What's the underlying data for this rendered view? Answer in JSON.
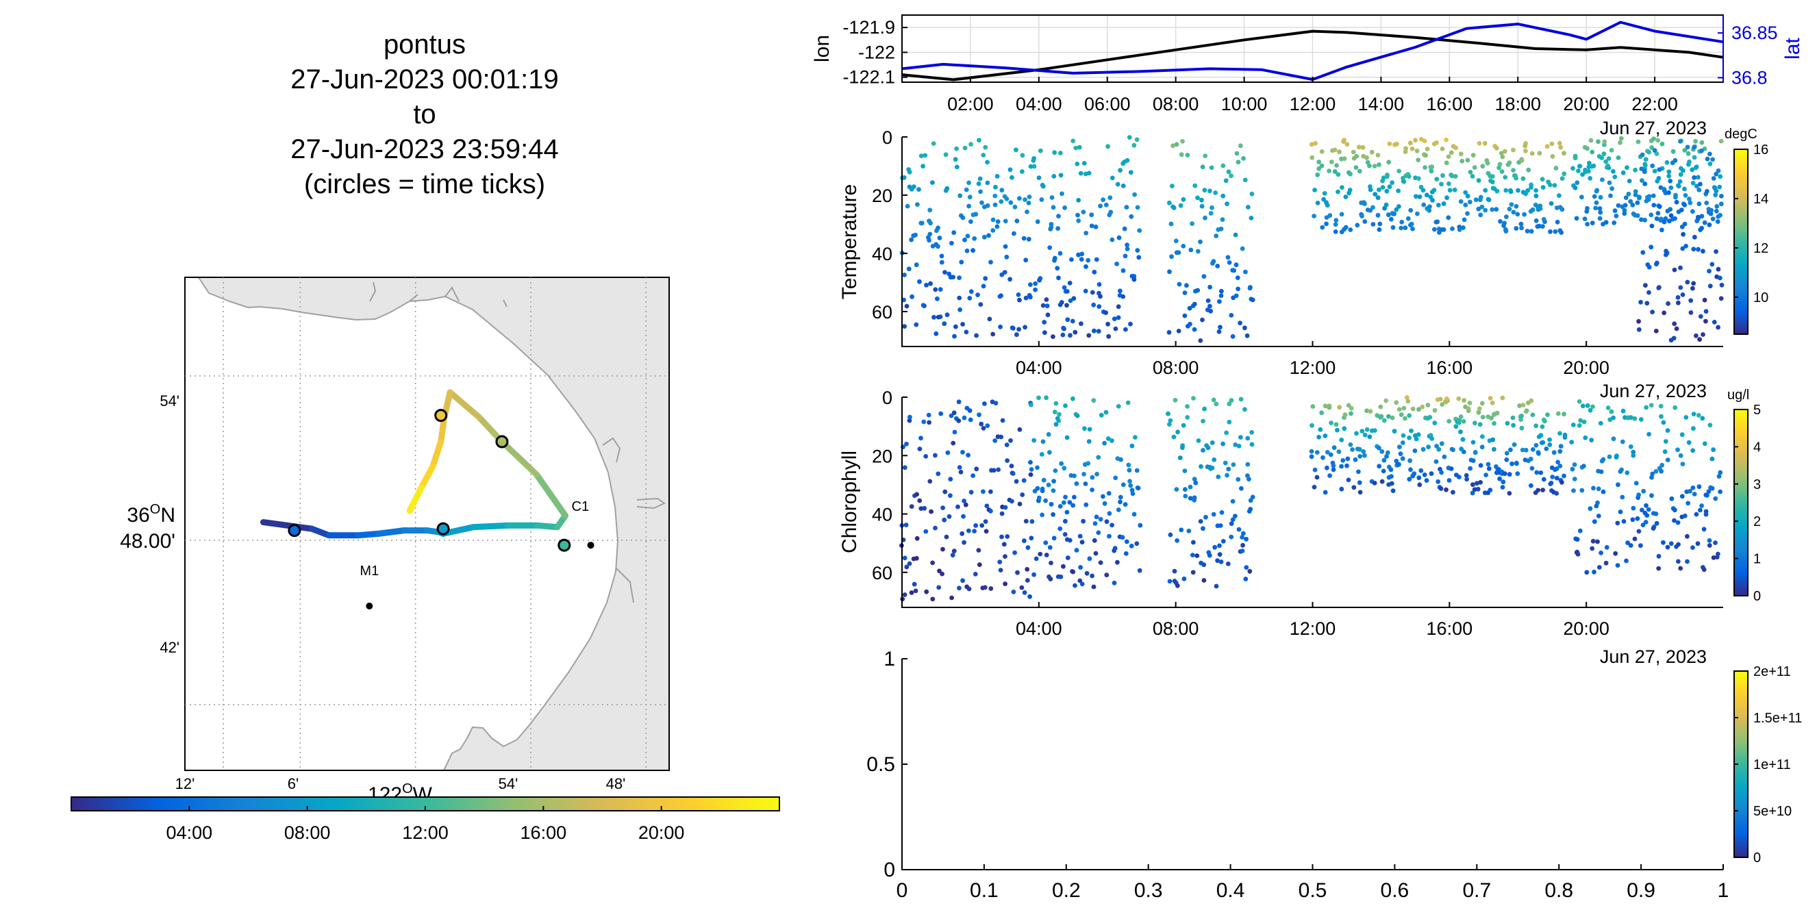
{
  "title": {
    "lines": [
      "pontus",
      "27-Jun-2023 00:01:19",
      "to",
      "27-Jun-2023 23:59:44",
      "(circles = time ticks)"
    ]
  },
  "colors": {
    "lon_line": "#000000",
    "lat_line": "#0000e0",
    "land": "#e6e6e6",
    "coast": "#a0a0a0",
    "parula": [
      "#352a87",
      "#0363e1",
      "#1485d4",
      "#06a7c6",
      "#38b99e",
      "#92bf73",
      "#d9ba56",
      "#fcce2e",
      "#f9fb0e"
    ]
  },
  "chart_data": [
    {
      "type": "line",
      "role": "track-map",
      "x_ticks": [
        "12'",
        "6'",
        "54'",
        "48'"
      ],
      "x_center_label": "122",
      "x_center_deg_suffix": "O",
      "x_center_dir": "W",
      "y_ticks": [
        "54'",
        "42'"
      ],
      "y_center_label_top": "36",
      "y_center_deg_suffix": "O",
      "y_center_dir": "N",
      "y_center_label_bottom": "48.00'",
      "xlim": [
        -122.2,
        -121.78
      ],
      "ylim": [
        36.66,
        36.96
      ],
      "stations": [
        {
          "name": "M1",
          "lon": -122.04,
          "lat": 36.76
        },
        {
          "name": "C1",
          "lon": -121.848,
          "lat": 36.797
        }
      ],
      "track": [
        {
          "t": 0.0,
          "lon": -122.132,
          "lat": 36.811
        },
        {
          "t": 1.0,
          "lon": -122.09,
          "lat": 36.807
        },
        {
          "t": 2.0,
          "lon": -122.075,
          "lat": 36.803
        },
        {
          "t": 3.0,
          "lon": -122.05,
          "lat": 36.803
        },
        {
          "t": 4.0,
          "lon": -122.032,
          "lat": 36.804
        },
        {
          "t": 5.0,
          "lon": -122.01,
          "lat": 36.806
        },
        {
          "t": 6.0,
          "lon": -121.99,
          "lat": 36.806
        },
        {
          "t": 7.0,
          "lon": -121.98,
          "lat": 36.805
        },
        {
          "t": 8.0,
          "lon": -121.976,
          "lat": 36.804
        },
        {
          "t": 8.5,
          "lon": -121.95,
          "lat": 36.808
        },
        {
          "t": 10.0,
          "lon": -121.92,
          "lat": 36.809
        },
        {
          "t": 11.0,
          "lon": -121.894,
          "lat": 36.809
        },
        {
          "t": 12.0,
          "lon": -121.877,
          "lat": 36.808
        },
        {
          "t": 13.5,
          "lon": -121.87,
          "lat": 36.815
        },
        {
          "t": 15.0,
          "lon": -121.895,
          "lat": 36.84
        },
        {
          "t": 16.0,
          "lon": -121.925,
          "lat": 36.86
        },
        {
          "t": 17.0,
          "lon": -121.945,
          "lat": 36.875
        },
        {
          "t": 18.0,
          "lon": -121.97,
          "lat": 36.89
        },
        {
          "t": 19.0,
          "lon": -121.975,
          "lat": 36.875
        },
        {
          "t": 20.0,
          "lon": -121.978,
          "lat": 36.86
        },
        {
          "t": 21.0,
          "lon": -121.985,
          "lat": 36.845
        },
        {
          "t": 22.0,
          "lon": -121.995,
          "lat": 36.832
        },
        {
          "t": 24.0,
          "lon": -122.005,
          "lat": 36.818
        }
      ],
      "time_tick_circles": [
        {
          "t": 4.0,
          "lon": -122.105,
          "lat": 36.806
        },
        {
          "t": 8.0,
          "lon": -121.976,
          "lat": 36.807
        },
        {
          "t": 12.0,
          "lon": -121.871,
          "lat": 36.797
        },
        {
          "t": 16.0,
          "lon": -121.925,
          "lat": 36.86
        },
        {
          "t": 20.0,
          "lon": -121.978,
          "lat": 36.876
        }
      ]
    },
    {
      "type": "colorbar",
      "role": "map-time-colorbar",
      "range": [
        0,
        24
      ],
      "ticks": [
        {
          "v": 4,
          "label": "04:00"
        },
        {
          "v": 8,
          "label": "08:00"
        },
        {
          "v": 12,
          "label": "12:00"
        },
        {
          "v": 16,
          "label": "16:00"
        },
        {
          "v": 20,
          "label": "20:00"
        }
      ]
    },
    {
      "type": "line",
      "role": "lon-lat-timeseries",
      "ylabel_left": "lon",
      "ylabel_right": "lat",
      "xlim": [
        0,
        24
      ],
      "x_ticks": [
        {
          "v": 2,
          "label": "02:00"
        },
        {
          "v": 4,
          "label": "04:00"
        },
        {
          "v": 6,
          "label": "06:00"
        },
        {
          "v": 8,
          "label": "08:00"
        },
        {
          "v": 10,
          "label": "10:00"
        },
        {
          "v": 12,
          "label": "12:00"
        },
        {
          "v": 14,
          "label": "14:00"
        },
        {
          "v": 16,
          "label": "16:00"
        },
        {
          "v": 18,
          "label": "18:00"
        },
        {
          "v": 20,
          "label": "20:00"
        },
        {
          "v": 22,
          "label": "22:00"
        }
      ],
      "date_label": "Jun 27, 2023",
      "ylim_left": [
        -122.12,
        -121.85
      ],
      "left_ticks": [
        {
          "v": -121.9,
          "label": "-121.9"
        },
        {
          "v": -122.0,
          "label": "-122"
        },
        {
          "v": -122.1,
          "label": "-122.1"
        }
      ],
      "ylim_right": [
        36.795,
        36.87
      ],
      "right_ticks": [
        {
          "v": 36.85,
          "label": "36.85"
        },
        {
          "v": 36.8,
          "label": "36.8"
        }
      ],
      "grid": true,
      "series": [
        {
          "axis": "left",
          "color": "#000000",
          "t": [
            0,
            1.5,
            4,
            6,
            8,
            10,
            12,
            13,
            15,
            17,
            18.5,
            20,
            21,
            23,
            24
          ],
          "v": [
            -122.09,
            -122.11,
            -122.07,
            -122.03,
            -121.99,
            -121.95,
            -121.915,
            -121.92,
            -121.94,
            -121.965,
            -121.985,
            -121.99,
            -121.98,
            -122.0,
            -122.02
          ]
        },
        {
          "axis": "right",
          "color": "#0000e0",
          "t": [
            0,
            1.2,
            3,
            5,
            7,
            9,
            10.5,
            12,
            13,
            15,
            16.5,
            18,
            19.5,
            20,
            21,
            22,
            24
          ],
          "v": [
            36.81,
            36.815,
            36.811,
            36.805,
            36.807,
            36.81,
            36.809,
            36.798,
            36.812,
            36.834,
            36.855,
            36.86,
            36.848,
            36.843,
            36.862,
            36.852,
            36.84
          ]
        }
      ]
    },
    {
      "type": "scatter",
      "role": "temperature-section",
      "ylabel": "Temperature",
      "xlim": [
        0,
        24
      ],
      "ylim": [
        0,
        72
      ],
      "y_reversed": true,
      "y_ticks": [
        0,
        20,
        40,
        60
      ],
      "x_ticks": [
        {
          "v": 4,
          "label": "04:00"
        },
        {
          "v": 8,
          "label": "08:00"
        },
        {
          "v": 12,
          "label": "12:00"
        },
        {
          "v": 16,
          "label": "16:00"
        },
        {
          "v": 20,
          "label": "20:00"
        }
      ],
      "date_label": "Jun 27, 2023",
      "colorbar": {
        "unit": "degC",
        "range": [
          8.5,
          16
        ],
        "ticks": [
          {
            "v": 10,
            "label": "10"
          },
          {
            "v": 12,
            "label": "12"
          },
          {
            "v": 14,
            "label": "14"
          },
          {
            "v": 16,
            "label": "16"
          }
        ]
      },
      "profiles": [
        {
          "t0": 0.0,
          "t1": 7.0,
          "dmax": 70,
          "surf": 12.0,
          "deep": 9.0
        },
        {
          "t0": 7.8,
          "t1": 10.3,
          "dmax": 70,
          "surf": 13.0,
          "deep": 9.2
        },
        {
          "t0": 12.0,
          "t1": 19.4,
          "dmax": 33,
          "surf": 14.5,
          "deep": 10.0
        },
        {
          "t0": 19.6,
          "t1": 24.0,
          "dmax": 30,
          "surf": 13.0,
          "deep": 10.0
        },
        {
          "t0": 21.5,
          "t1": 24.0,
          "dmax": 70,
          "surf": 10.5,
          "deep": 8.8
        }
      ]
    },
    {
      "type": "scatter",
      "role": "chlorophyll-section",
      "ylabel": "Chlorophyll",
      "xlim": [
        0,
        24
      ],
      "ylim": [
        0,
        72
      ],
      "y_reversed": true,
      "y_ticks": [
        0,
        20,
        40,
        60
      ],
      "x_ticks": [
        {
          "v": 4,
          "label": "04:00"
        },
        {
          "v": 8,
          "label": "08:00"
        },
        {
          "v": 12,
          "label": "12:00"
        },
        {
          "v": 16,
          "label": "16:00"
        },
        {
          "v": 20,
          "label": "20:00"
        }
      ],
      "date_label": "Jun 27, 2023",
      "colorbar": {
        "unit": "ug/l",
        "range": [
          0,
          5
        ],
        "ticks": [
          {
            "v": 0,
            "label": "0"
          },
          {
            "v": 1,
            "label": "1"
          },
          {
            "v": 2,
            "label": "2"
          },
          {
            "v": 3,
            "label": "3"
          },
          {
            "v": 4,
            "label": "4"
          },
          {
            "v": 5,
            "label": "5"
          }
        ]
      },
      "profiles": [
        {
          "t0": 0.0,
          "t1": 3.8,
          "dmax": 70,
          "surf": 0.6,
          "deep": 0.2
        },
        {
          "t0": 3.8,
          "t1": 7.0,
          "dmax": 65,
          "surf": 2.3,
          "deep": 0.3
        },
        {
          "t0": 7.8,
          "t1": 10.3,
          "dmax": 65,
          "surf": 2.5,
          "deep": 0.3
        },
        {
          "t0": 12.0,
          "t1": 19.4,
          "dmax": 33,
          "surf": 3.6,
          "deep": 0.4
        },
        {
          "t0": 19.6,
          "t1": 24.0,
          "dmax": 60,
          "surf": 2.4,
          "deep": 0.3
        }
      ]
    },
    {
      "type": "scatter",
      "role": "empty-panel",
      "xlim": [
        0,
        1
      ],
      "ylim": [
        0,
        1
      ],
      "x_ticks": [
        "0",
        "0.1",
        "0.2",
        "0.3",
        "0.4",
        "0.5",
        "0.6",
        "0.7",
        "0.8",
        "0.9",
        "1"
      ],
      "y_ticks": [
        "0",
        "0.5",
        "1"
      ],
      "colorbar": {
        "range": [
          0,
          200000000000.0
        ],
        "ticks": [
          {
            "v": 0,
            "label": "0"
          },
          {
            "v": 50000000000.0,
            "label": "5e+10"
          },
          {
            "v": 100000000000.0,
            "label": "1e+11"
          },
          {
            "v": 150000000000.0,
            "label": "1.5e+11"
          },
          {
            "v": 200000000000.0,
            "label": "2e+11"
          }
        ]
      }
    }
  ]
}
